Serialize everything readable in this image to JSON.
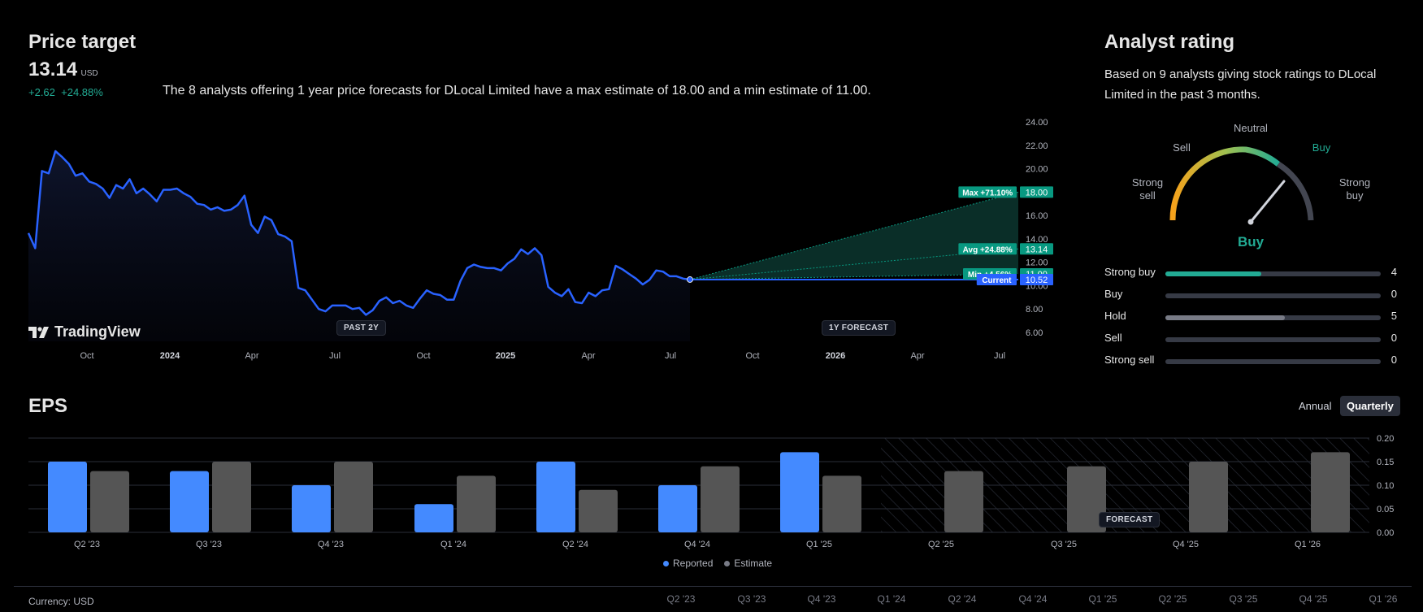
{
  "price_target": {
    "title": "Price target",
    "value": "13.14",
    "unit": "USD",
    "change_abs": "+2.62",
    "change_pct": "+24.88%",
    "description": "The 8 analysts offering 1 year price forecasts for DLocal Limited have a max estimate of 18.00 and a min estimate of 11.00."
  },
  "branding": {
    "logo_text": "TradingView"
  },
  "pills": {
    "past": "PAST 2Y",
    "forecast": "1Y FORECAST",
    "eps_forecast": "FORECAST"
  },
  "chart_data": [
    {
      "id": "price",
      "type": "line",
      "title": "Price target",
      "ylim": [
        6,
        24
      ],
      "y_ticks": [
        "24.00",
        "22.00",
        "20.00",
        "18.00",
        "16.00",
        "14.00",
        "12.00",
        "10.00",
        "8.00",
        "6.00"
      ],
      "x_tick_labels": [
        {
          "label": "Oct",
          "bold": false
        },
        {
          "label": "2024",
          "bold": true
        },
        {
          "label": "Apr",
          "bold": false
        },
        {
          "label": "Jul",
          "bold": false
        },
        {
          "label": "Oct",
          "bold": false
        },
        {
          "label": "2025",
          "bold": true
        },
        {
          "label": "Apr",
          "bold": false
        },
        {
          "label": "Jul",
          "bold": false
        },
        {
          "label": "Oct",
          "bold": false
        },
        {
          "label": "2026",
          "bold": true
        },
        {
          "label": "Apr",
          "bold": false
        },
        {
          "label": "Jul",
          "bold": false
        }
      ],
      "history_values": [
        14.5,
        13.2,
        19.8,
        19.6,
        21.5,
        21.0,
        20.4,
        19.4,
        19.6,
        18.9,
        18.7,
        18.3,
        17.5,
        18.6,
        18.3,
        19.1,
        17.9,
        18.3,
        17.8,
        17.2,
        18.2,
        18.2,
        18.3,
        17.9,
        17.6,
        17.0,
        16.9,
        16.5,
        16.7,
        16.4,
        16.5,
        16.9,
        17.7,
        15.2,
        14.5,
        15.9,
        15.6,
        14.4,
        14.2,
        13.8,
        9.8,
        9.6,
        8.8,
        8.0,
        7.8,
        8.3,
        8.3,
        8.3,
        8.0,
        8.1,
        7.5,
        7.9,
        8.7,
        9.0,
        8.5,
        8.7,
        8.3,
        8.1,
        8.9,
        9.6,
        9.3,
        9.2,
        8.8,
        8.8,
        10.4,
        11.5,
        11.8,
        11.6,
        11.5,
        11.5,
        11.3,
        11.9,
        12.3,
        13.1,
        12.7,
        13.2,
        12.6,
        9.9,
        9.4,
        9.1,
        9.7,
        8.6,
        8.5,
        9.4,
        9.1,
        9.6,
        9.7,
        11.7,
        11.4,
        11.0,
        10.6,
        10.1,
        10.5,
        11.3,
        11.2,
        10.8,
        10.8,
        10.6,
        10.52
      ],
      "forecast": {
        "current": 10.52,
        "max": 18.0,
        "avg": 13.14,
        "min": 11.0,
        "labels": {
          "max": "Max +71.10%",
          "avg": "Avg +24.88%",
          "min": "Min +4.56%",
          "current": "Current",
          "max_val": "18.00",
          "avg_val": "13.14",
          "min_val": "11.00",
          "current_val": "10.52"
        }
      },
      "colors": {
        "line": "#2962ff",
        "forecast": "#089981",
        "current": "#2962ff"
      }
    },
    {
      "id": "eps",
      "type": "bar",
      "title": "EPS",
      "categories": [
        "Q2 '23",
        "Q3 '23",
        "Q4 '23",
        "Q1 '24",
        "Q2 '24",
        "Q4 '24",
        "Q1 '25",
        "Q2 '25",
        "Q3 '25",
        "Q4 '25",
        "Q1 '26"
      ],
      "series": [
        {
          "name": "Reported",
          "color": "#448aff",
          "values": [
            0.15,
            0.13,
            0.1,
            0.06,
            0.15,
            0.1,
            0.17,
            null,
            null,
            null,
            null
          ]
        },
        {
          "name": "Estimate",
          "color": "#555555",
          "values": [
            0.13,
            0.15,
            0.15,
            0.12,
            0.09,
            0.14,
            0.12,
            0.13,
            0.14,
            0.15,
            0.17
          ]
        }
      ],
      "forecast_start_index": 7,
      "ylim": [
        0,
        0.2
      ],
      "y_ticks": [
        "0.20",
        "0.15",
        "0.10",
        "0.05",
        "0.00"
      ],
      "legend": [
        "Reported",
        "Estimate"
      ]
    }
  ],
  "analyst_rating": {
    "title": "Analyst rating",
    "description": "Based on 9 analysts giving stock ratings to DLocal Limited in the past 3 months.",
    "gauge_labels": {
      "strong_sell_1": "Strong",
      "strong_sell_2": "sell",
      "sell": "Sell",
      "neutral": "Neutral",
      "buy": "Buy",
      "strong_buy_1": "Strong",
      "strong_buy_2": "buy"
    },
    "result": "Buy",
    "rows": [
      {
        "label": "Strong buy",
        "count": "4",
        "fraction": 0.444,
        "color": "#22ab94"
      },
      {
        "label": "Buy",
        "count": "0",
        "fraction": 0,
        "color": "#22ab94"
      },
      {
        "label": "Hold",
        "count": "5",
        "fraction": 0.556,
        "color": "#787b86"
      },
      {
        "label": "Sell",
        "count": "0",
        "fraction": 0,
        "color": "#787b86"
      },
      {
        "label": "Strong sell",
        "count": "0",
        "fraction": 0,
        "color": "#787b86"
      }
    ]
  },
  "eps": {
    "title": "EPS",
    "toggle_annual": "Annual",
    "toggle_quarterly": "Quarterly",
    "legend_reported": "Reported",
    "legend_estimate": "Estimate"
  },
  "footer": {
    "currency": "Currency: USD",
    "periods": [
      "Q2 '23",
      "Q3 '23",
      "Q4 '23",
      "Q1 '24",
      "Q2 '24",
      "Q4 '24",
      "Q1 '25",
      "Q2 '25",
      "Q3 '25",
      "Q4 '25",
      "Q1 '26"
    ]
  }
}
